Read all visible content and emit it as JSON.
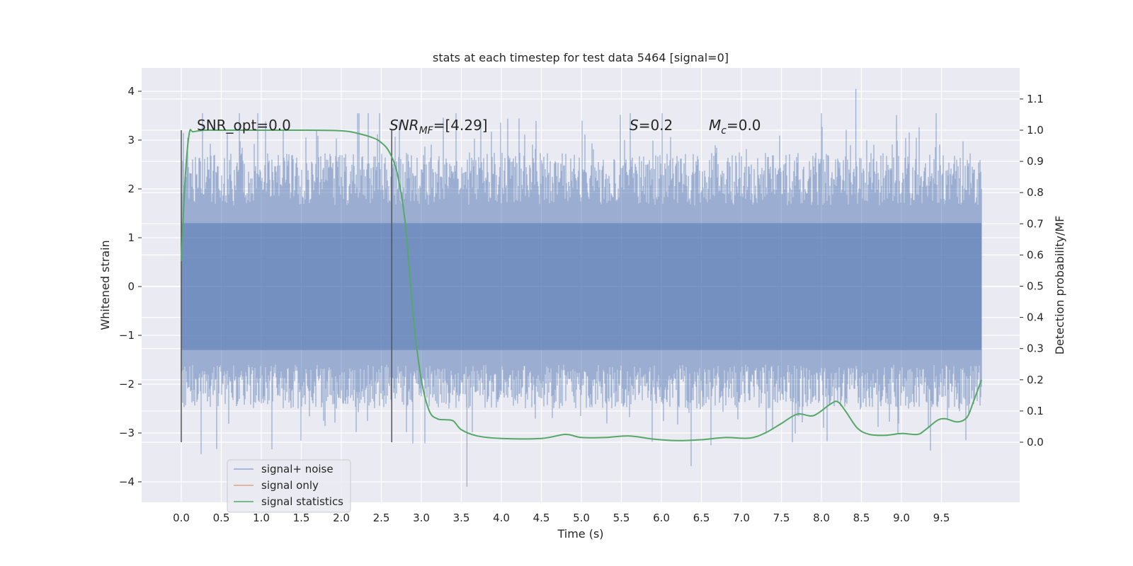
{
  "chart_data": {
    "type": "line",
    "title": "stats at each timestep for test data 5464 [signal=0]",
    "xlabel": "Time (s)",
    "ylabel": "Whitened strain",
    "ylabel_right": "Detection probability/MF",
    "xlim": [
      -0.5,
      10.5
    ],
    "ylim": [
      -4.4,
      4.4
    ],
    "ylim_right": [
      -0.2,
      1.2
    ],
    "xticks": [
      0.0,
      0.5,
      1.0,
      1.5,
      2.0,
      2.5,
      3.0,
      3.5,
      4.0,
      4.5,
      5.0,
      5.5,
      6.0,
      6.5,
      7.0,
      7.5,
      8.0,
      8.5,
      9.0,
      9.5
    ],
    "xtick_labels": [
      "0.0",
      "0.5",
      "1.0",
      "1.5",
      "2.0",
      "2.5",
      "3.0",
      "3.5",
      "4.0",
      "4.5",
      "5.0",
      "5.5",
      "6.0",
      "6.5",
      "7.0",
      "7.5",
      "8.0",
      "8.5",
      "9.0",
      "9.5"
    ],
    "yticks": [
      -4,
      -3,
      -2,
      -1,
      0,
      1,
      2,
      3,
      4
    ],
    "ytick_labels": [
      "−4",
      "−3",
      "−2",
      "−1",
      "0",
      "1",
      "2",
      "3",
      "4"
    ],
    "yticks_right": [
      0.0,
      0.1,
      0.2,
      0.3,
      0.4,
      0.5,
      0.6,
      0.7,
      0.8,
      0.9,
      1.0,
      1.1
    ],
    "ytick_labels_right": [
      "0.0",
      "0.1",
      "0.2",
      "0.3",
      "0.4",
      "0.5",
      "0.6",
      "0.7",
      "0.8",
      "0.9",
      "1.0",
      "1.1"
    ],
    "grid": true,
    "legend_placement": "lower-left",
    "series": [
      {
        "name": "signal+ noise",
        "color": "#4c72b0",
        "axis": "left",
        "style": "dense noise band",
        "x_range": [
          0.0,
          10.0
        ],
        "core_band": [
          -1.3,
          1.3
        ],
        "typical_peak": [
          -2.3,
          2.5
        ],
        "spike_max": 4.05,
        "spike_max_x": 8.43,
        "spike_min": -4.1,
        "spike_min_x": 3.57
      },
      {
        "name": "signal only",
        "color": "#dd8452",
        "axis": "left",
        "values": []
      },
      {
        "name": "signal statistics",
        "color": "#55a868",
        "axis": "right",
        "x": [
          0.0,
          0.05,
          0.1,
          0.15,
          0.3,
          0.5,
          1.0,
          1.5,
          2.0,
          2.2,
          2.4,
          2.5,
          2.6,
          2.7,
          2.8,
          2.9,
          3.0,
          3.1,
          3.2,
          3.3,
          3.4,
          3.5,
          3.7,
          4.0,
          4.5,
          4.8,
          5.0,
          5.3,
          5.6,
          5.9,
          6.2,
          6.5,
          6.8,
          7.1,
          7.3,
          7.5,
          7.7,
          7.9,
          8.1,
          8.2,
          8.3,
          8.45,
          8.6,
          8.8,
          9.0,
          9.2,
          9.3,
          9.45,
          9.55,
          9.7,
          9.82,
          9.9,
          10.0
        ],
        "values": [
          0.58,
          0.85,
          0.99,
          0.995,
          1.0,
          1.0,
          1.0,
          1.0,
          0.998,
          0.99,
          0.975,
          0.96,
          0.93,
          0.86,
          0.7,
          0.4,
          0.2,
          0.1,
          0.075,
          0.072,
          0.068,
          0.04,
          0.02,
          0.012,
          0.012,
          0.025,
          0.015,
          0.015,
          0.02,
          0.01,
          0.005,
          0.008,
          0.015,
          0.013,
          0.03,
          0.06,
          0.09,
          0.085,
          0.12,
          0.13,
          0.1,
          0.045,
          0.025,
          0.022,
          0.028,
          0.025,
          0.04,
          0.07,
          0.075,
          0.065,
          0.08,
          0.13,
          0.2
        ]
      }
    ],
    "vertical_lines": [
      {
        "x": 0.0,
        "color": "#555555"
      },
      {
        "x": 2.63,
        "color": "#555555"
      }
    ],
    "annotations": {
      "snr_opt": "SNR_opt=0.0",
      "snr_mf_main": "SNR",
      "snr_mf_sub": "MF",
      "snr_mf_value": "=[4.29]",
      "s_main": "S",
      "s_value": "=0.2",
      "mc_main": "M",
      "mc_sub": "c",
      "mc_value": "=0.0"
    }
  }
}
